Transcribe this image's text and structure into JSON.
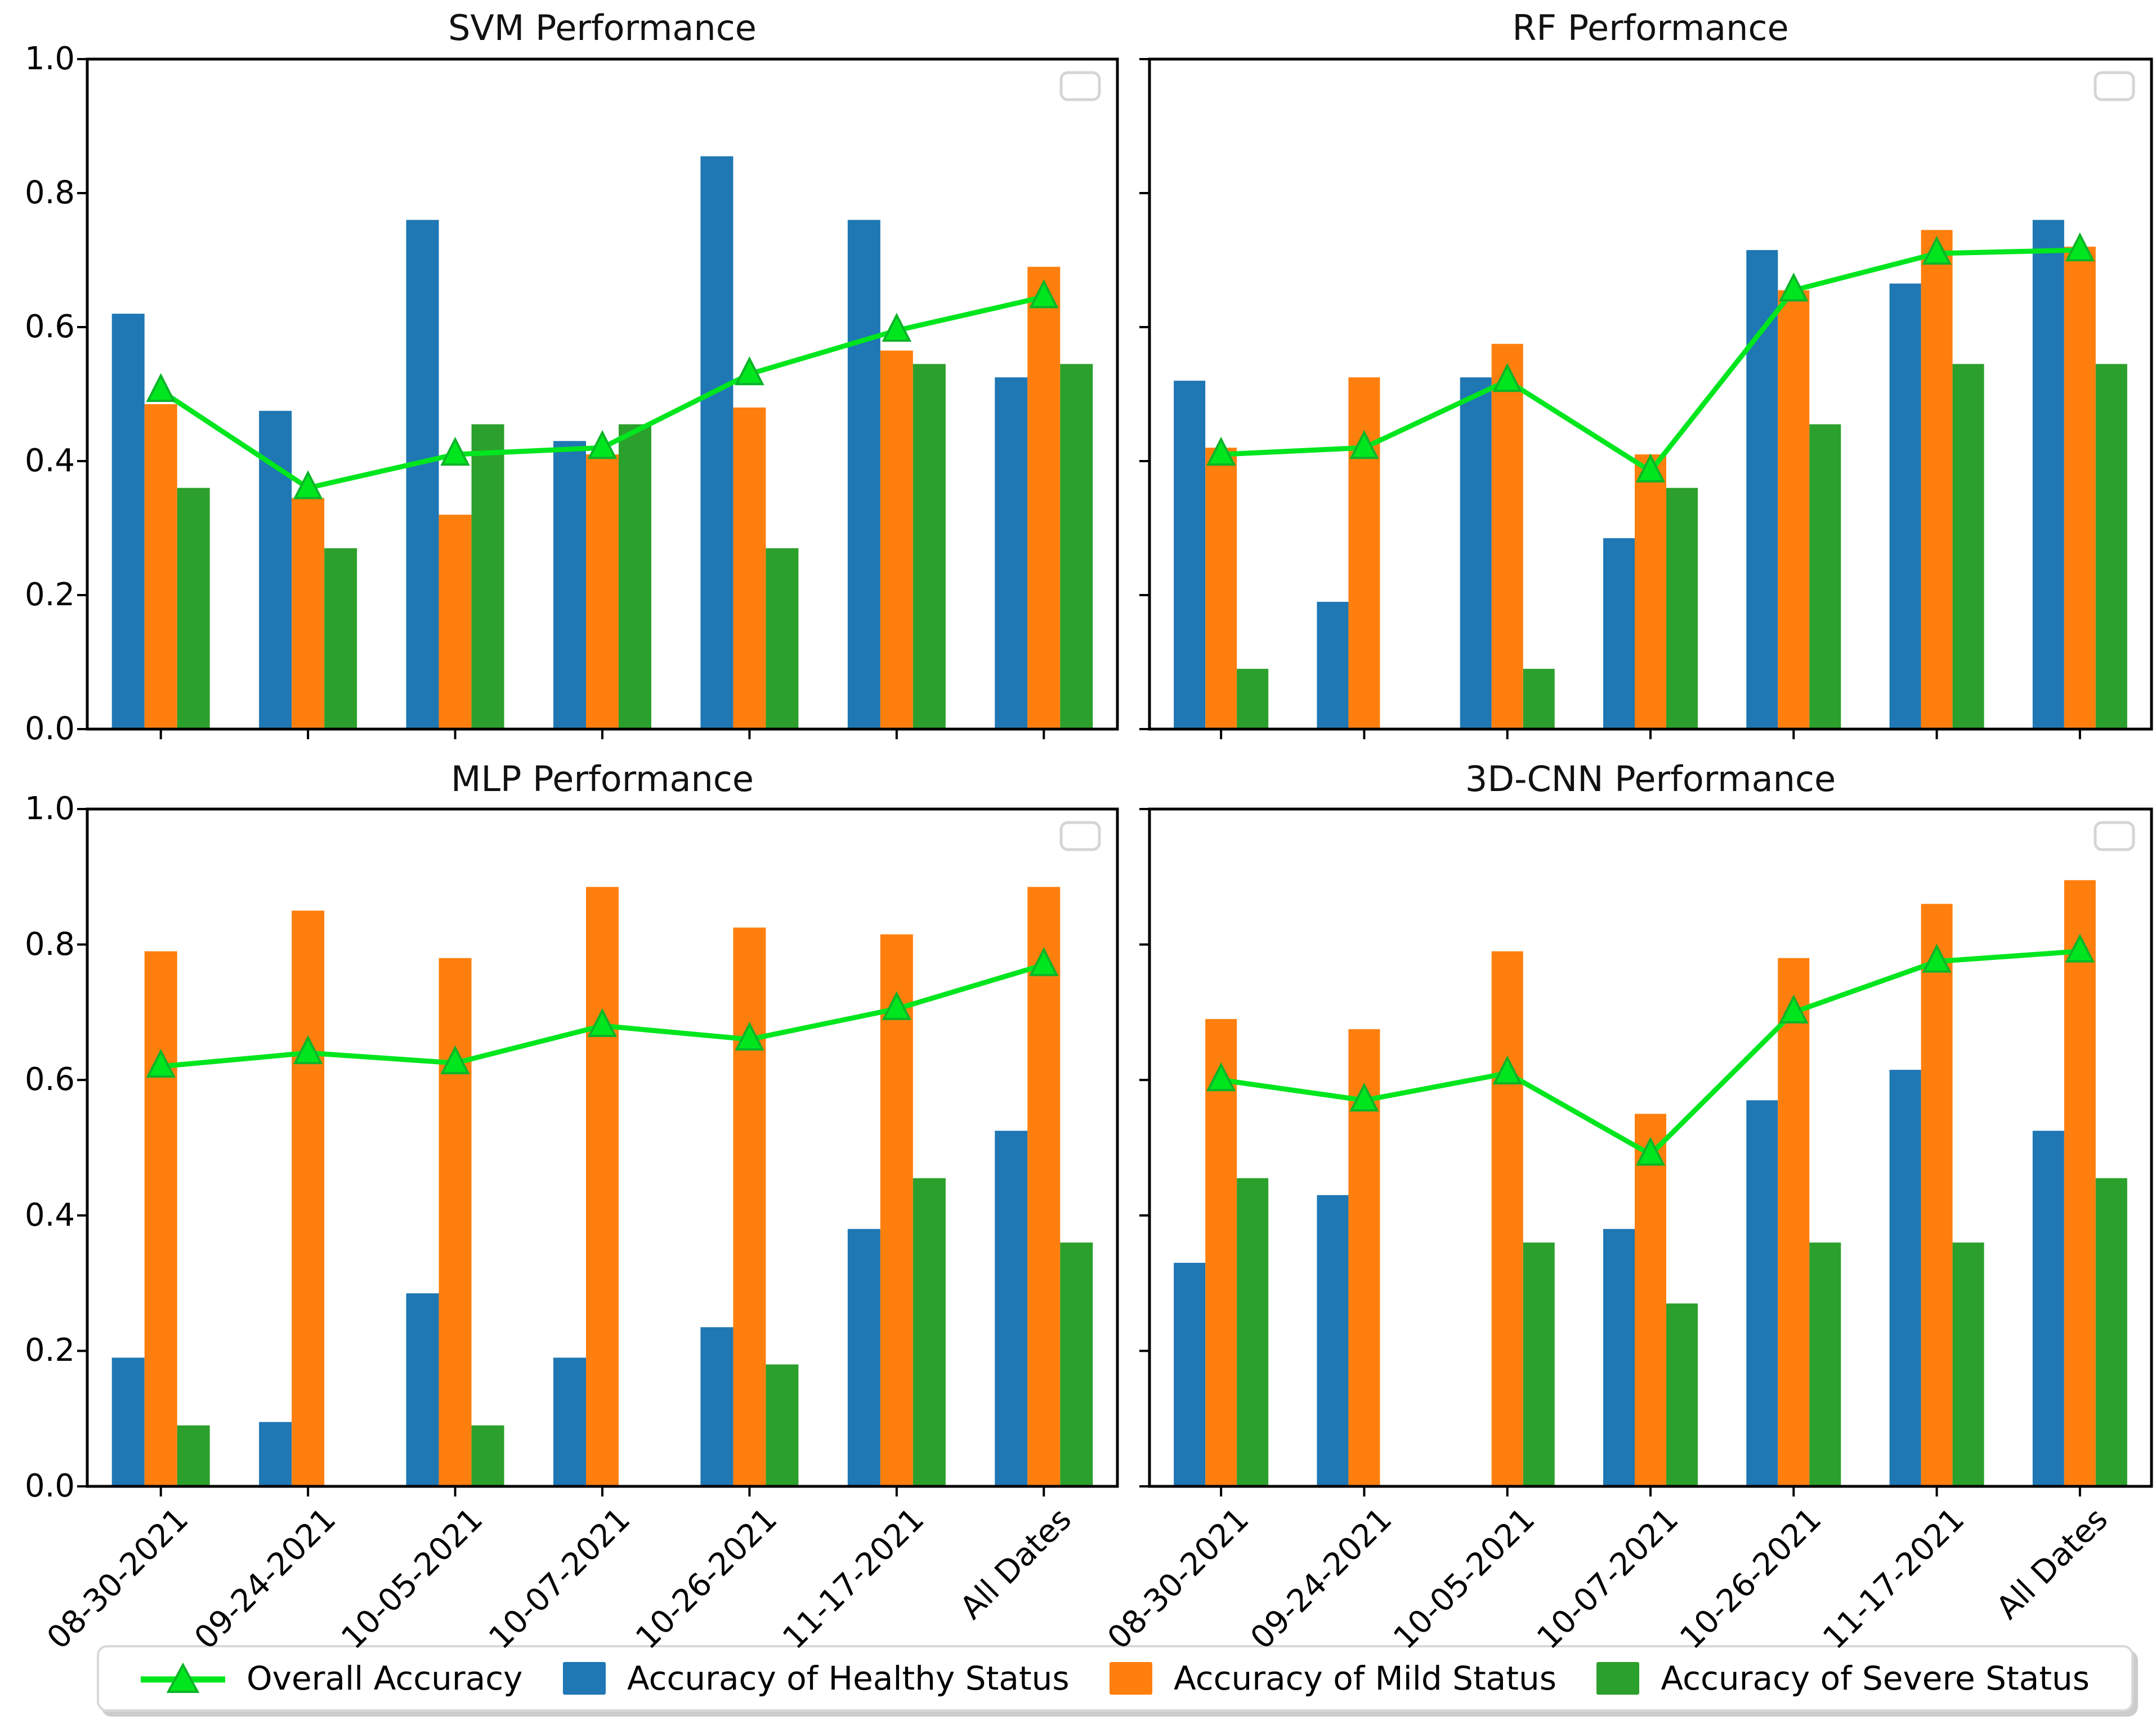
{
  "page": {
    "background": "#ffffff"
  },
  "axis": {
    "y_tick_labels": [
      "0.0",
      "0.2",
      "0.4",
      "0.6",
      "0.8",
      "1.0"
    ],
    "y_range": [
      0,
      1
    ],
    "grid": false
  },
  "colors": {
    "healthy_blue": "#1f77b4",
    "mild_orange": "#ff7f0e",
    "severe_green": "#2ca02c",
    "overall_line_green": "#00e61e",
    "overall_marker_edge": "#0cb428",
    "spine_black": "#000000",
    "inset_box_border": "#d5d5d5",
    "legend_border": "#d9d9d9"
  },
  "legend": {
    "items": [
      {
        "label": "Overall Accuracy",
        "marker": "triangle-line",
        "color": "#00e61e",
        "edge_color": "#0cb428"
      },
      {
        "label": "Accuracy of Healthy Status",
        "marker": "square",
        "color": "#1f77b4"
      },
      {
        "label": "Accuracy of Mild Status",
        "marker": "square",
        "color": "#ff7f0e"
      },
      {
        "label": "Accuracy of Severe Status",
        "marker": "square",
        "color": "#2ca02c"
      }
    ]
  },
  "chart_data": [
    {
      "type": "bar",
      "title": "SVM Performance",
      "categories": [
        "08-30-2021",
        "09-24-2021",
        "10-05-2021",
        "10-07-2021",
        "10-26-2021",
        "11-17-2021",
        "All Dates"
      ],
      "ylim": [
        0,
        1
      ],
      "series": [
        {
          "name": "Accuracy of Healthy Status",
          "color": "#1f77b4",
          "values": [
            0.62,
            0.475,
            0.76,
            0.43,
            0.855,
            0.76,
            0.525
          ]
        },
        {
          "name": "Accuracy of Mild Status",
          "color": "#ff7f0e",
          "values": [
            0.485,
            0.345,
            0.32,
            0.41,
            0.48,
            0.565,
            0.69
          ]
        },
        {
          "name": "Accuracy of Severe Status",
          "color": "#2ca02c",
          "values": [
            0.36,
            0.27,
            0.455,
            0.455,
            0.27,
            0.545,
            0.545
          ]
        }
      ],
      "line_series": {
        "name": "Overall Accuracy",
        "color": "#00e61e",
        "marker": "triangle",
        "values": [
          0.505,
          0.36,
          0.41,
          0.42,
          0.53,
          0.595,
          0.645
        ]
      }
    },
    {
      "type": "bar",
      "title": "RF Performance",
      "categories": [
        "08-30-2021",
        "09-24-2021",
        "10-05-2021",
        "10-07-2021",
        "10-26-2021",
        "11-17-2021",
        "All Dates"
      ],
      "ylim": [
        0,
        1
      ],
      "series": [
        {
          "name": "Accuracy of Healthy Status",
          "color": "#1f77b4",
          "values": [
            0.52,
            0.19,
            0.525,
            0.285,
            0.715,
            0.665,
            0.76
          ]
        },
        {
          "name": "Accuracy of Mild Status",
          "color": "#ff7f0e",
          "values": [
            0.42,
            0.525,
            0.575,
            0.41,
            0.655,
            0.745,
            0.72
          ]
        },
        {
          "name": "Accuracy of Severe Status",
          "color": "#2ca02c",
          "values": [
            0.09,
            0,
            0.09,
            0.36,
            0.455,
            0.545,
            0.545
          ]
        }
      ],
      "line_series": {
        "name": "Overall Accuracy",
        "color": "#00e61e",
        "marker": "triangle",
        "values": [
          0.41,
          0.42,
          0.52,
          0.385,
          0.655,
          0.71,
          0.715
        ]
      }
    },
    {
      "type": "bar",
      "title": "MLP Performance",
      "categories": [
        "08-30-2021",
        "09-24-2021",
        "10-05-2021",
        "10-07-2021",
        "10-26-2021",
        "11-17-2021",
        "All Dates"
      ],
      "ylim": [
        0,
        1
      ],
      "series": [
        {
          "name": "Accuracy of Healthy Status",
          "color": "#1f77b4",
          "values": [
            0.19,
            0.095,
            0.285,
            0.19,
            0.235,
            0.38,
            0.525
          ]
        },
        {
          "name": "Accuracy of Mild Status",
          "color": "#ff7f0e",
          "values": [
            0.79,
            0.85,
            0.78,
            0.885,
            0.825,
            0.815,
            0.885
          ]
        },
        {
          "name": "Accuracy of Severe Status",
          "color": "#2ca02c",
          "values": [
            0.09,
            0,
            0.09,
            0,
            0.18,
            0.455,
            0.36
          ]
        }
      ],
      "line_series": {
        "name": "Overall Accuracy",
        "color": "#00e61e",
        "marker": "triangle",
        "values": [
          0.62,
          0.64,
          0.625,
          0.68,
          0.66,
          0.705,
          0.77
        ]
      }
    },
    {
      "type": "bar",
      "title": "3D-CNN Performance",
      "categories": [
        "08-30-2021",
        "09-24-2021",
        "10-05-2021",
        "10-07-2021",
        "10-26-2021",
        "11-17-2021",
        "All Dates"
      ],
      "ylim": [
        0,
        1
      ],
      "series": [
        {
          "name": "Accuracy of Healthy Status",
          "color": "#1f77b4",
          "values": [
            0.33,
            0.43,
            0,
            0.38,
            0.57,
            0.615,
            0.525
          ]
        },
        {
          "name": "Accuracy of Mild Status",
          "color": "#ff7f0e",
          "values": [
            0.69,
            0.675,
            0.79,
            0.55,
            0.78,
            0.86,
            0.895
          ]
        },
        {
          "name": "Accuracy of Severe Status",
          "color": "#2ca02c",
          "values": [
            0.455,
            0,
            0.36,
            0.27,
            0.36,
            0.36,
            0.455
          ]
        }
      ],
      "line_series": {
        "name": "Overall Accuracy",
        "color": "#00e61e",
        "marker": "triangle",
        "values": [
          0.6,
          0.57,
          0.61,
          0.49,
          0.7,
          0.775,
          0.79
        ]
      }
    }
  ]
}
